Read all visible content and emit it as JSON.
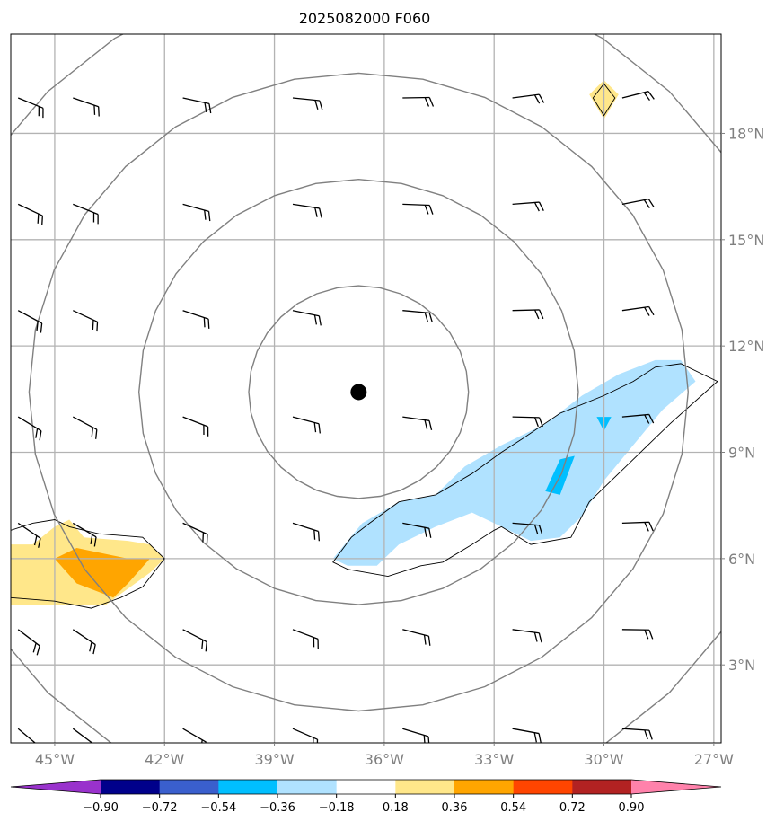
{
  "chart_data": {
    "type": "map",
    "title": "2025082000 F060",
    "lon_range": [
      -46.2,
      -26.8
    ],
    "lat_range": [
      0.8,
      20.8
    ],
    "x_ticks": [
      {
        "lon": -45,
        "label": "45°W"
      },
      {
        "lon": -42,
        "label": "42°W"
      },
      {
        "lon": -39,
        "label": "39°W"
      },
      {
        "lon": -36,
        "label": "36°W"
      },
      {
        "lon": -33,
        "label": "33°W"
      },
      {
        "lon": -30,
        "label": "30°W"
      },
      {
        "lon": -27,
        "label": "27°W"
      }
    ],
    "y_ticks": [
      {
        "lat": 3,
        "label": "3°N"
      },
      {
        "lat": 6,
        "label": "6°N"
      },
      {
        "lat": 9,
        "label": "9°N"
      },
      {
        "lat": 12,
        "label": "12°N"
      },
      {
        "lat": 15,
        "label": "15°N"
      },
      {
        "lat": 18,
        "label": "18°N"
      }
    ],
    "grid": true,
    "center": {
      "lon": -36.7,
      "lat": 10.7
    },
    "range_rings_deg": [
      3,
      6,
      9,
      12
    ],
    "colorbar": {
      "orientation": "horizontal",
      "extend": "both",
      "levels": [
        -0.9,
        -0.72,
        -0.54,
        -0.36,
        -0.18,
        0.18,
        0.36,
        0.54,
        0.72,
        0.9
      ],
      "tick_labels": [
        "−0.90",
        "−0.72",
        "−0.54",
        "−0.36",
        "−0.18",
        "0.18",
        "0.36",
        "0.54",
        "0.72",
        "0.90"
      ],
      "colors": [
        "#9932cc",
        "#00008b",
        "#3a5fcd",
        "#00bfff",
        "#b0e2ff",
        "#ffffff",
        "#ffe78a",
        "#ffa500",
        "#ff4500",
        "#b22222",
        "#ff82ab"
      ]
    },
    "filled_regions": [
      {
        "value_class": "-0.36..-0.18",
        "color": "#b0e2ff",
        "lonlat": [
          [
            -37.4,
            6.0
          ],
          [
            -36.6,
            7.0
          ],
          [
            -35.6,
            7.6
          ],
          [
            -34.6,
            7.8
          ],
          [
            -33.8,
            8.6
          ],
          [
            -32.8,
            9.2
          ],
          [
            -31.6,
            9.8
          ],
          [
            -30.6,
            10.6
          ],
          [
            -29.6,
            11.2
          ],
          [
            -28.6,
            11.6
          ],
          [
            -27.9,
            11.6
          ],
          [
            -27.5,
            11.0
          ],
          [
            -28.4,
            10.2
          ],
          [
            -29.2,
            9.2
          ],
          [
            -30.0,
            8.2
          ],
          [
            -30.6,
            7.2
          ],
          [
            -31.2,
            6.6
          ],
          [
            -32.0,
            6.5
          ],
          [
            -32.8,
            6.9
          ],
          [
            -33.6,
            7.3
          ],
          [
            -34.6,
            6.9
          ],
          [
            -35.6,
            6.4
          ],
          [
            -36.2,
            5.8
          ],
          [
            -37.0,
            5.8
          ]
        ]
      },
      {
        "value_class": "-0.54..-0.36",
        "color": "#00bfff",
        "lonlat": [
          [
            -31.2,
            8.8
          ],
          [
            -30.8,
            8.9
          ],
          [
            -31.2,
            7.8
          ],
          [
            -31.6,
            7.9
          ]
        ]
      },
      {
        "value_class": "-0.54..-0.36",
        "color": "#00bfff",
        "lonlat": [
          [
            -30.2,
            10.0
          ],
          [
            -29.8,
            10.0
          ],
          [
            -30.0,
            9.6
          ]
        ]
      },
      {
        "value_class": "0.18..0.36",
        "color": "#ffe78a",
        "lonlat": [
          [
            -46.2,
            6.4
          ],
          [
            -45.6,
            6.4
          ],
          [
            -45.0,
            6.9
          ],
          [
            -44.6,
            7.1
          ],
          [
            -44.2,
            6.6
          ],
          [
            -43.0,
            6.5
          ],
          [
            -42.4,
            6.4
          ],
          [
            -42.0,
            6.0
          ],
          [
            -42.4,
            5.6
          ],
          [
            -43.2,
            5.0
          ],
          [
            -43.6,
            4.7
          ],
          [
            -45.0,
            4.7
          ],
          [
            -46.2,
            4.7
          ]
        ]
      },
      {
        "value_class": "0.36..0.54",
        "color": "#ffa500",
        "lonlat": [
          [
            -45.0,
            6.0
          ],
          [
            -44.4,
            6.3
          ],
          [
            -43.0,
            6.0
          ],
          [
            -42.4,
            6.0
          ],
          [
            -43.0,
            5.3
          ],
          [
            -43.4,
            4.9
          ],
          [
            -44.4,
            5.3
          ]
        ]
      },
      {
        "value_class": "0.18..0.36",
        "color": "#ffe78a",
        "lonlat": [
          [
            -30.0,
            19.5
          ],
          [
            -29.6,
            19.1
          ],
          [
            -30.0,
            18.4
          ],
          [
            -30.4,
            19.1
          ]
        ]
      }
    ],
    "contours": [
      {
        "lonlat": [
          [
            -37.4,
            5.9
          ],
          [
            -36.9,
            6.6
          ],
          [
            -36.4,
            7.0
          ],
          [
            -35.6,
            7.6
          ],
          [
            -34.6,
            7.8
          ],
          [
            -33.6,
            8.4
          ],
          [
            -32.8,
            9.0
          ],
          [
            -32.2,
            9.4
          ],
          [
            -31.2,
            10.1
          ],
          [
            -30.0,
            10.6
          ],
          [
            -29.2,
            11.0
          ],
          [
            -28.6,
            11.4
          ],
          [
            -27.9,
            11.5
          ],
          [
            -26.9,
            11.0
          ],
          [
            -28.2,
            9.8
          ],
          [
            -29.4,
            8.6
          ],
          [
            -30.4,
            7.6
          ],
          [
            -30.9,
            6.6
          ],
          [
            -32.0,
            6.4
          ],
          [
            -32.8,
            6.9
          ],
          [
            -33.0,
            6.8
          ],
          [
            -33.6,
            6.4
          ],
          [
            -34.4,
            5.9
          ],
          [
            -35.0,
            5.8
          ],
          [
            -35.9,
            5.5
          ],
          [
            -37.0,
            5.7
          ]
        ],
        "closed": true
      },
      {
        "lonlat": [
          [
            -46.2,
            6.8
          ],
          [
            -45.6,
            7.0
          ],
          [
            -45.0,
            7.1
          ],
          [
            -44.6,
            6.9
          ],
          [
            -43.8,
            6.7
          ],
          [
            -42.6,
            6.6
          ],
          [
            -42.0,
            6.0
          ],
          [
            -42.6,
            5.2
          ],
          [
            -43.2,
            4.9
          ],
          [
            -44.0,
            4.6
          ],
          [
            -45.0,
            4.8
          ],
          [
            -46.2,
            4.9
          ]
        ],
        "closed": false
      },
      {
        "lonlat": [
          [
            -30.0,
            19.4
          ],
          [
            -29.7,
            19.0
          ],
          [
            -30.0,
            18.5
          ],
          [
            -30.3,
            19.0
          ]
        ],
        "closed": true
      }
    ],
    "wind_barbs": {
      "lons": [
        -46.0,
        -44.5,
        -41.5,
        -38.5,
        -35.5,
        -32.5,
        -29.5
      ],
      "lats": [
        19.0,
        16.0,
        13.0,
        10.0,
        7.0,
        4.0,
        1.2
      ],
      "length_px": 30
    }
  }
}
